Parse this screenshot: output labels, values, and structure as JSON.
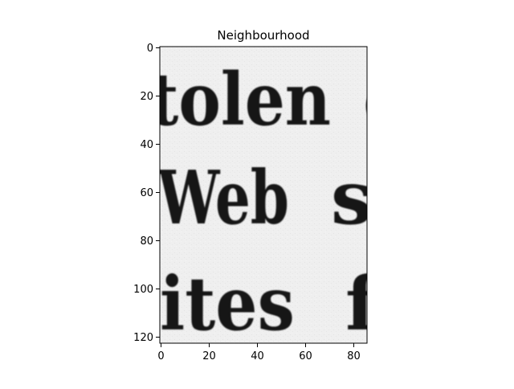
{
  "chart_data": {
    "type": "image",
    "title": "Neighbourhood",
    "xlabel": "",
    "ylabel": "",
    "xlim": [
      -0.5,
      85.5
    ],
    "ylim": [
      122.5,
      -0.5
    ],
    "image_width": 86,
    "image_height": 123,
    "x_ticks": [
      0,
      20,
      40,
      60,
      80
    ],
    "y_ticks": [
      0,
      20,
      40,
      60,
      80,
      100,
      120
    ],
    "x_tick_labels": [
      "0",
      "20",
      "40",
      "60",
      "80"
    ],
    "y_tick_labels": [
      "0",
      "20",
      "40",
      "60",
      "80",
      "100",
      "120"
    ],
    "colormap": "gray",
    "background_color": "#ececec",
    "ink_color": "#141414",
    "image_text": {
      "line1": "tolen",
      "line1_tail": "o",
      "line2": "Web",
      "line2_tail": "s",
      "line3": "ites",
      "line3_tail": "f"
    }
  }
}
